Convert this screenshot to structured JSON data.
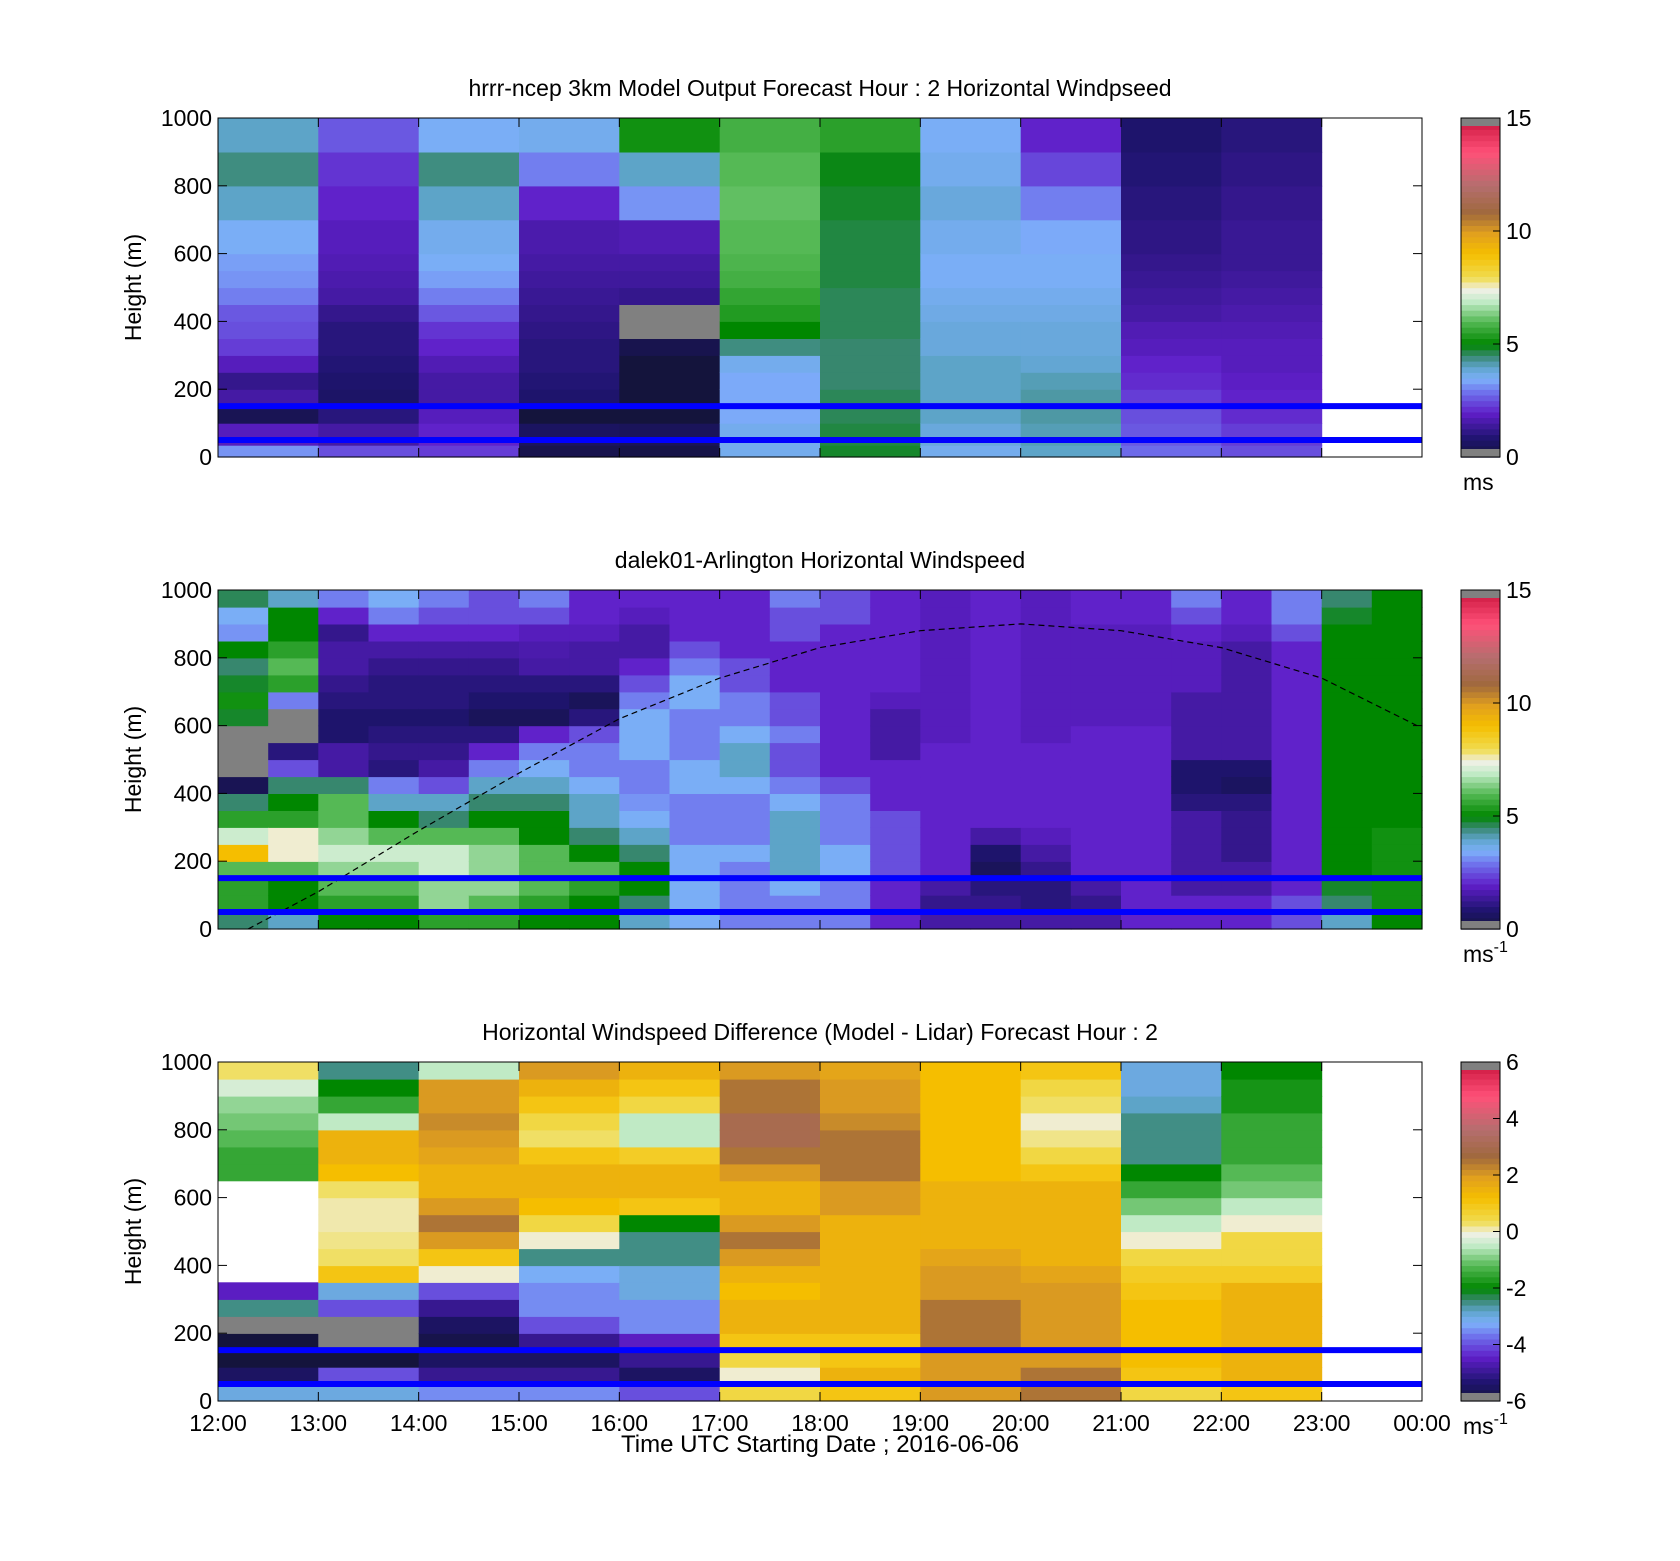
{
  "figure": {
    "xlabel": "Time UTC  Starting Date ; 2016-06-06",
    "x_ticks": [
      "12:00",
      "13:00",
      "14:00",
      "15:00",
      "16:00",
      "17:00",
      "18:00",
      "19:00",
      "20:00",
      "21:00",
      "22:00",
      "23:00",
      "00:00"
    ]
  },
  "chart_data": [
    {
      "type": "heatmap",
      "title": "hrrr-ncep 3km Model Output   Forecast Hour : 2 Horizontal Windpseed",
      "ylabel": "Height (m)",
      "xlim": [
        "12:00",
        "00:00"
      ],
      "ylim": [
        0,
        1000
      ],
      "y_ticks": [
        "0",
        "200",
        "400",
        "600",
        "800",
        "1000"
      ],
      "colorbar": {
        "min": 0,
        "max": 15,
        "ticks": [
          "0",
          "5",
          "10",
          "15"
        ],
        "unit_base": "ms",
        "unit_exp": ""
      },
      "reference_lines_m": [
        50,
        150
      ],
      "x_hours": [
        12,
        13,
        14,
        15,
        16,
        17,
        18,
        19,
        20,
        21,
        22
      ],
      "bin_hours": 1,
      "y_bins_m": [
        0,
        35,
        100,
        150,
        200,
        250,
        300,
        350,
        400,
        450,
        500,
        550,
        600,
        700,
        800,
        900,
        1000
      ],
      "values": [
        [
          3.2,
          1.8,
          0.4,
          1.5,
          1.2,
          1.8,
          2.3,
          2.5,
          2.6,
          3.0,
          3.2,
          3.3,
          3.5,
          4.0,
          4.4,
          4.0,
          3.5
        ],
        [
          2.5,
          1.5,
          1.0,
          0.7,
          0.8,
          0.9,
          1.0,
          1.0,
          1.2,
          1.5,
          1.6,
          1.7,
          1.8,
          2.0,
          2.2,
          2.6,
          3.3
        ],
        [
          2.3,
          2.0,
          1.8,
          1.5,
          1.5,
          1.7,
          2.0,
          2.2,
          2.6,
          3.0,
          3.3,
          3.5,
          3.6,
          4.0,
          4.4,
          3.5,
          3.0
        ],
        [
          0.3,
          0.6,
          0.0,
          0.8,
          0.9,
          1.0,
          1.0,
          1.1,
          1.2,
          1.3,
          1.4,
          1.5,
          1.6,
          2.0,
          3.0,
          3.6,
          3.4
        ],
        [
          0.2,
          0.5,
          0.0,
          0.0,
          0.0,
          0.0,
          0.3,
          0.6,
          1.0,
          1.2,
          1.4,
          1.5,
          1.7,
          3.2,
          4.0,
          5.2,
          5.5
        ],
        [
          3.6,
          3.6,
          3.4,
          3.4,
          3.4,
          3.6,
          4.4,
          5.0,
          5.4,
          5.6,
          5.8,
          5.9,
          6.0,
          6.1,
          6.0,
          5.8,
          5.6
        ],
        [
          4.8,
          4.7,
          4.6,
          4.6,
          4.5,
          4.5,
          4.5,
          4.6,
          4.6,
          4.6,
          4.7,
          4.7,
          4.7,
          4.8,
          4.9,
          5.5,
          5.8
        ],
        [
          3.6,
          3.8,
          4.0,
          4.0,
          4.0,
          4.0,
          3.8,
          3.8,
          3.7,
          3.6,
          3.5,
          3.5,
          3.6,
          3.8,
          3.6,
          3.5,
          3.4
        ],
        [
          4.0,
          4.1,
          4.2,
          4.2,
          4.1,
          3.9,
          3.8,
          3.8,
          3.7,
          3.6,
          3.5,
          3.5,
          3.4,
          3.0,
          2.4,
          2.0,
          1.9
        ],
        [
          2.8,
          2.6,
          2.5,
          2.3,
          2.1,
          2.0,
          1.8,
          1.7,
          1.5,
          1.4,
          1.3,
          1.2,
          1.1,
          1.0,
          0.9,
          0.8,
          0.8
        ],
        [
          2.5,
          2.3,
          2.1,
          2.0,
          1.9,
          1.8,
          1.8,
          1.7,
          1.6,
          1.5,
          1.4,
          1.3,
          1.3,
          1.2,
          1.1,
          1.0,
          1.0
        ]
      ],
      "missing_cells": [
        [
          4,
          7
        ],
        [
          4,
          8
        ]
      ],
      "missing_data_note": ""
    },
    {
      "type": "heatmap",
      "title": "dalek01-Arlington  Horizontal Windspeed",
      "ylabel": "Height (m)",
      "xlim": [
        "12:00",
        "00:00"
      ],
      "ylim": [
        0,
        1000
      ],
      "y_ticks": [
        "0",
        "200",
        "400",
        "600",
        "800",
        "1000"
      ],
      "colorbar": {
        "min": 0,
        "max": 15,
        "ticks": [
          "0",
          "5",
          "10",
          "15"
        ],
        "unit_base": "ms",
        "unit_exp": "-1"
      },
      "reference_lines_m": [
        50,
        150
      ],
      "x_hours": [
        12.0,
        12.5,
        13.0,
        13.5,
        14.0,
        14.5,
        15.0,
        15.5,
        16.0,
        16.5,
        17.0,
        17.5,
        18.0,
        18.5,
        19.0,
        19.5,
        20.0,
        20.5,
        21.0,
        21.5,
        22.0,
        22.5,
        23.0,
        23.5
      ],
      "bin_hours": 0.5,
      "y_bins_m": [
        0,
        50,
        100,
        150,
        200,
        250,
        300,
        350,
        400,
        450,
        500,
        550,
        600,
        650,
        700,
        750,
        800,
        850,
        900,
        950,
        1000
      ],
      "values": [
        [
          4.5,
          5.5,
          5.5,
          6.0,
          9.0,
          7.0,
          5.5,
          4.5,
          0.4,
          5.0,
          6.0,
          4.5,
          4.8,
          5.2,
          4.8,
          4.5,
          5.0,
          3.2,
          3.5,
          4.6
        ],
        [
          4.0,
          5.0,
          5.0,
          6.0,
          7.5,
          7.5,
          5.5,
          5.0,
          4.5,
          2.5,
          1.0,
          1.0,
          1.2,
          3.0,
          5.5,
          6.0,
          5.5,
          5.0,
          5.0,
          4.0
        ],
        [
          5.0,
          5.5,
          6.0,
          6.5,
          7.0,
          6.5,
          6.0,
          6.0,
          4.5,
          1.5,
          1.5,
          0.8,
          0.8,
          1.0,
          1.2,
          1.5,
          1.5,
          1.2,
          2.0,
          3.0
        ],
        [
          5.0,
          5.5,
          6.0,
          6.5,
          7.0,
          6.0,
          5.0,
          4.0,
          3.0,
          1.0,
          1.2,
          1.0,
          0.8,
          1.0,
          1.0,
          1.2,
          1.5,
          2.0,
          3.0,
          3.5
        ],
        [
          5.5,
          6.5,
          6.5,
          7.0,
          7.0,
          6.0,
          4.5,
          4.0,
          2.5,
          1.5,
          1.2,
          1.0,
          0.8,
          1.0,
          1.0,
          1.2,
          1.5,
          2.0,
          2.5,
          3.0
        ],
        [
          5.5,
          6.0,
          6.5,
          6.5,
          6.5,
          6.0,
          5.0,
          4.5,
          4.0,
          3.0,
          2.0,
          1.0,
          0.5,
          0.8,
          1.0,
          1.2,
          1.5,
          2.0,
          2.5,
          2.5
        ],
        [
          5.0,
          5.5,
          6.0,
          6.0,
          6.0,
          5.0,
          5.0,
          4.5,
          4.0,
          3.5,
          3.0,
          2.0,
          0.5,
          0.8,
          1.0,
          1.5,
          1.6,
          1.8,
          2.5,
          3.0
        ],
        [
          5.0,
          5.0,
          5.5,
          6.0,
          5.0,
          4.5,
          4.0,
          4.0,
          3.5,
          3.0,
          3.0,
          2.5,
          1.0,
          0.5,
          1.0,
          1.5,
          1.5,
          1.8,
          2.0,
          2.0
        ],
        [
          4.0,
          4.5,
          5.0,
          5.0,
          4.5,
          4.0,
          3.5,
          3.2,
          3.0,
          3.0,
          3.5,
          3.5,
          3.5,
          3.0,
          2.5,
          2.0,
          1.5,
          1.5,
          1.8,
          2.0
        ],
        [
          3.5,
          3.5,
          3.5,
          3.5,
          3.5,
          3.0,
          3.0,
          3.0,
          3.5,
          3.5,
          3.0,
          3.0,
          3.0,
          3.5,
          3.5,
          3.0,
          2.5,
          2.0,
          2.0,
          2.0
        ],
        [
          3.0,
          3.0,
          3.0,
          3.0,
          3.5,
          3.0,
          3.0,
          3.0,
          3.5,
          4.0,
          4.0,
          3.5,
          3.0,
          3.0,
          2.5,
          2.5,
          2.0,
          2.0,
          2.0,
          2.0
        ],
        [
          3.0,
          3.0,
          3.5,
          4.0,
          4.0,
          4.0,
          4.0,
          3.5,
          3.0,
          2.5,
          2.5,
          3.0,
          2.5,
          2.5,
          2.0,
          2.0,
          2.0,
          2.5,
          2.5,
          3.0
        ],
        [
          3.0,
          3.0,
          3.0,
          3.5,
          3.5,
          3.0,
          3.0,
          3.0,
          2.5,
          2.0,
          2.0,
          2.0,
          2.0,
          2.0,
          2.0,
          2.0,
          2.0,
          2.0,
          2.5,
          2.5
        ],
        [
          2.0,
          2.0,
          2.0,
          2.5,
          2.5,
          2.5,
          2.5,
          2.0,
          2.0,
          2.0,
          1.5,
          1.5,
          1.5,
          1.8,
          2.0,
          2.0,
          2.0,
          2.0,
          2.0,
          2.0
        ],
        [
          1.5,
          1.2,
          1.5,
          2.0,
          2.0,
          2.0,
          2.0,
          2.0,
          2.0,
          2.0,
          2.0,
          1.8,
          1.8,
          1.8,
          1.8,
          1.8,
          1.8,
          1.8,
          1.8,
          1.8
        ],
        [
          1.5,
          1.2,
          1.0,
          0.5,
          0.8,
          1.5,
          2.0,
          2.0,
          2.0,
          2.0,
          2.0,
          2.0,
          2.0,
          2.0,
          2.0,
          2.0,
          2.0,
          2.0,
          2.0,
          2.0
        ],
        [
          1.5,
          1.0,
          1.0,
          1.2,
          1.5,
          1.8,
          2.0,
          2.0,
          2.0,
          2.0,
          2.0,
          1.8,
          1.8,
          1.8,
          1.8,
          1.8,
          1.8,
          1.8,
          1.8,
          1.8
        ],
        [
          1.5,
          1.2,
          1.5,
          2.0,
          2.0,
          2.0,
          2.0,
          2.0,
          2.0,
          2.0,
          2.0,
          2.0,
          1.8,
          1.8,
          1.8,
          1.8,
          1.8,
          1.8,
          2.0,
          2.0
        ],
        [
          2.0,
          2.0,
          2.0,
          2.0,
          2.0,
          2.0,
          2.0,
          2.0,
          2.0,
          2.0,
          2.0,
          2.0,
          1.8,
          1.8,
          1.8,
          1.8,
          1.8,
          1.8,
          2.0,
          2.0
        ],
        [
          2.0,
          2.0,
          1.5,
          1.5,
          1.5,
          1.5,
          1.5,
          1.0,
          0.8,
          0.8,
          1.5,
          1.5,
          1.5,
          1.5,
          1.8,
          1.8,
          1.8,
          2.0,
          2.5,
          3.0
        ],
        [
          2.0,
          2.0,
          1.5,
          1.5,
          1.2,
          1.2,
          1.2,
          1.0,
          0.6,
          0.8,
          1.5,
          1.5,
          1.5,
          1.5,
          1.5,
          1.5,
          1.5,
          1.8,
          2.0,
          2.0
        ],
        [
          2.5,
          2.5,
          2.0,
          2.0,
          2.0,
          2.0,
          2.0,
          2.0,
          2.0,
          2.0,
          2.0,
          2.0,
          2.0,
          2.0,
          2.0,
          2.0,
          2.0,
          2.5,
          3.0,
          3.0
        ],
        [
          4.0,
          4.5,
          4.8,
          5.0,
          5.0,
          5.0,
          5.0,
          5.0,
          5.0,
          5.0,
          5.0,
          5.0,
          5.0,
          5.0,
          5.0,
          5.0,
          5.0,
          5.0,
          4.8,
          4.5
        ],
        [
          5.0,
          5.2,
          5.2,
          5.2,
          5.2,
          5.2,
          5.0,
          5.0,
          5.0,
          5.0,
          5.0,
          5.0,
          5.0,
          5.0,
          5.0,
          5.0,
          5.0,
          5.0,
          5.0,
          5.0
        ]
      ],
      "missing_cells": [
        [
          0,
          9
        ],
        [
          0,
          10
        ],
        [
          0,
          11
        ],
        [
          1,
          11
        ],
        [
          1,
          12
        ]
      ],
      "boundary_layer_curve": {
        "x_hours": [
          12.3,
          13.0,
          14.0,
          15.0,
          16.0,
          17.0,
          18.0,
          19.0,
          20.0,
          21.0,
          22.0,
          23.0,
          23.95
        ],
        "height_m": [
          0,
          110,
          290,
          460,
          620,
          740,
          830,
          880,
          900,
          880,
          830,
          740,
          600
        ]
      }
    },
    {
      "type": "heatmap",
      "title": "Horizontal Windspeed Difference (Model - Lidar) Forecast Hour : 2",
      "ylabel": "Height (m)",
      "xlim": [
        "12:00",
        "00:00"
      ],
      "ylim": [
        0,
        1000
      ],
      "y_ticks": [
        "0",
        "200",
        "400",
        "600",
        "800",
        "1000"
      ],
      "colorbar": {
        "min": -6,
        "max": 6,
        "ticks": [
          "-6",
          "-4",
          "-2",
          "0",
          "2",
          "4",
          "6"
        ],
        "unit_base": "ms",
        "unit_exp": "-1"
      },
      "reference_lines_m": [
        50,
        150
      ],
      "x_hours": [
        12,
        13,
        14,
        15,
        16,
        17,
        18,
        19,
        20,
        21,
        22
      ],
      "bin_hours": 1,
      "y_bins_m": [
        0,
        50,
        100,
        150,
        200,
        250,
        300,
        350,
        400,
        450,
        500,
        550,
        600,
        650,
        700,
        750,
        800,
        850,
        900,
        950,
        1000
      ],
      "values": [
        [
          -3.0,
          -5.5,
          -6.2,
          -6.2,
          -6.2,
          -2.5,
          -4.5,
          null,
          null,
          null,
          null,
          null,
          null,
          -1.5,
          -1.5,
          -1.2,
          -1.0,
          -0.8,
          -0.3,
          0.3
        ],
        [
          -3.0,
          -4.0,
          -6.2,
          -6.2,
          -6.2,
          -4.0,
          -3.0,
          1.0,
          0.3,
          0.2,
          0.1,
          0.1,
          0.3,
          1.2,
          1.5,
          1.5,
          -0.5,
          -1.5,
          -2.0,
          -2.5
        ],
        [
          -3.5,
          -5.0,
          -5.5,
          -5.8,
          -5.5,
          -5.0,
          -4.0,
          0.0,
          1.0,
          2.0,
          2.5,
          2.0,
          1.5,
          1.5,
          1.8,
          2.0,
          2.2,
          2.0,
          2.0,
          -0.5
        ],
        [
          -3.5,
          -5.0,
          -5.5,
          -5.0,
          -4.0,
          -3.5,
          -3.5,
          -3.2,
          -2.5,
          0.0,
          0.5,
          1.2,
          1.5,
          1.5,
          1.0,
          0.3,
          0.5,
          1.0,
          1.5,
          2.0
        ],
        [
          -4.0,
          -5.5,
          -5.0,
          -4.5,
          -3.5,
          -3.5,
          -3.0,
          -3.0,
          -2.5,
          -2.5,
          -2.0,
          1.0,
          1.5,
          1.5,
          0.8,
          -0.5,
          -0.5,
          0.5,
          1.0,
          1.5
        ],
        [
          0.5,
          0.0,
          0.5,
          1.0,
          1.5,
          1.5,
          1.2,
          1.5,
          2.0,
          2.5,
          2.0,
          1.5,
          1.5,
          2.0,
          2.5,
          3.0,
          3.0,
          2.5,
          2.5,
          2.0
        ],
        [
          1.0,
          1.5,
          1.0,
          1.0,
          1.5,
          1.5,
          1.5,
          1.5,
          1.5,
          1.5,
          1.5,
          2.0,
          2.0,
          2.5,
          2.5,
          2.5,
          2.2,
          2.0,
          2.0,
          1.8
        ],
        [
          2.0,
          2.0,
          2.0,
          2.5,
          2.5,
          2.5,
          2.0,
          2.0,
          1.8,
          1.5,
          1.5,
          1.5,
          1.5,
          1.2,
          1.2,
          1.2,
          1.2,
          1.2,
          1.2,
          1.2
        ],
        [
          2.5,
          2.5,
          2.0,
          2.0,
          2.0,
          2.0,
          2.0,
          1.8,
          1.5,
          1.5,
          1.5,
          1.5,
          1.5,
          1.0,
          0.5,
          0.2,
          0.0,
          0.3,
          0.5,
          1.0
        ],
        [
          0.5,
          1.0,
          1.2,
          1.2,
          1.2,
          1.2,
          1.0,
          0.8,
          0.5,
          0.0,
          -0.5,
          -1.0,
          -1.5,
          -2.0,
          -2.5,
          -2.5,
          -2.5,
          -2.8,
          -3.0,
          -3.0
        ],
        [
          1.0,
          1.5,
          1.5,
          1.5,
          1.5,
          1.5,
          1.5,
          0.8,
          0.5,
          0.5,
          0.0,
          -0.5,
          -1.0,
          -1.2,
          -1.5,
          -1.5,
          -1.5,
          -1.8,
          -1.8,
          -2.0
        ]
      ],
      "missing_cells": [
        [
          0,
          4
        ],
        [
          1,
          3
        ],
        [
          1,
          4
        ]
      ]
    }
  ]
}
